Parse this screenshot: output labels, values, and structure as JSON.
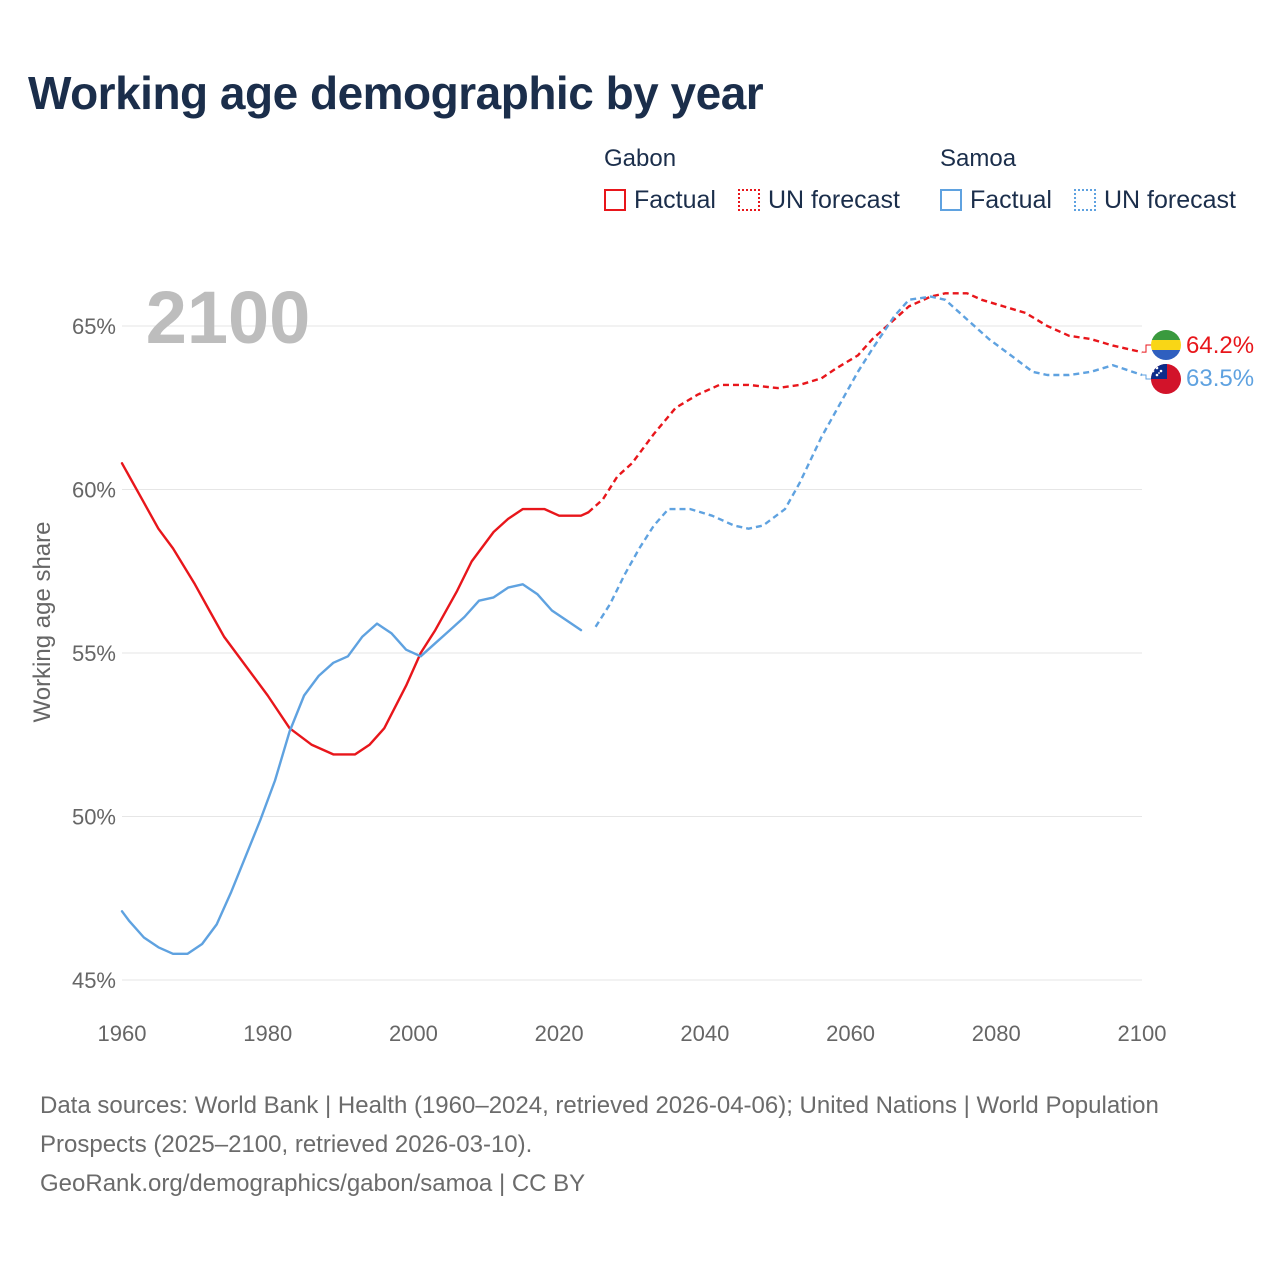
{
  "title": "Working age demographic by year",
  "legend": {
    "groups": [
      {
        "name": "Gabon",
        "color": "#e8161b",
        "factual_label": "Factual",
        "forecast_label": "UN forecast"
      },
      {
        "name": "Samoa",
        "color": "#5fa2e0",
        "factual_label": "Factual",
        "forecast_label": "UN forecast"
      }
    ]
  },
  "chart_data": {
    "type": "line",
    "year_watermark": "2100",
    "ylabel": "Working age share",
    "xlabel": "",
    "xlim": [
      1960,
      2100
    ],
    "ylim": [
      45,
      67
    ],
    "x_ticks": [
      "1960",
      "1980",
      "2000",
      "2020",
      "2040",
      "2060",
      "2080",
      "2100"
    ],
    "y_ticks": [
      {
        "value": 45,
        "label": "45%"
      },
      {
        "value": 50,
        "label": "50%"
      },
      {
        "value": 55,
        "label": "55%"
      },
      {
        "value": 60,
        "label": "60%"
      },
      {
        "value": 65,
        "label": "65%"
      }
    ],
    "factual_until": 2024,
    "series": [
      {
        "name": "Gabon",
        "color": "#e8161b",
        "end_label": "64.2%",
        "points": [
          [
            1960,
            60.8
          ],
          [
            1963,
            59.6
          ],
          [
            1965,
            58.8
          ],
          [
            1967,
            58.2
          ],
          [
            1970,
            57.1
          ],
          [
            1972,
            56.3
          ],
          [
            1974,
            55.5
          ],
          [
            1977,
            54.6
          ],
          [
            1980,
            53.7
          ],
          [
            1983,
            52.7
          ],
          [
            1986,
            52.2
          ],
          [
            1989,
            51.9
          ],
          [
            1992,
            51.9
          ],
          [
            1994,
            52.2
          ],
          [
            1996,
            52.7
          ],
          [
            1999,
            54.0
          ],
          [
            2001,
            55.0
          ],
          [
            2003,
            55.7
          ],
          [
            2006,
            56.9
          ],
          [
            2008,
            57.8
          ],
          [
            2011,
            58.7
          ],
          [
            2013,
            59.1
          ],
          [
            2015,
            59.4
          ],
          [
            2018,
            59.4
          ],
          [
            2020,
            59.2
          ],
          [
            2023,
            59.2
          ],
          [
            2024,
            59.3
          ],
          [
            2026,
            59.7
          ],
          [
            2028,
            60.4
          ],
          [
            2030,
            60.8
          ],
          [
            2033,
            61.7
          ],
          [
            2036,
            62.5
          ],
          [
            2039,
            62.9
          ],
          [
            2042,
            63.2
          ],
          [
            2046,
            63.2
          ],
          [
            2050,
            63.1
          ],
          [
            2053,
            63.2
          ],
          [
            2056,
            63.4
          ],
          [
            2058,
            63.7
          ],
          [
            2061,
            64.1
          ],
          [
            2063,
            64.6
          ],
          [
            2066,
            65.2
          ],
          [
            2068,
            65.6
          ],
          [
            2071,
            65.9
          ],
          [
            2073,
            66.0
          ],
          [
            2076,
            66.0
          ],
          [
            2078,
            65.8
          ],
          [
            2081,
            65.6
          ],
          [
            2084,
            65.4
          ],
          [
            2087,
            65.0
          ],
          [
            2090,
            64.7
          ],
          [
            2093,
            64.6
          ],
          [
            2096,
            64.4
          ],
          [
            2100,
            64.2
          ]
        ]
      },
      {
        "name": "Samoa",
        "color": "#5fa2e0",
        "end_label": "63.5%",
        "points": [
          [
            1960,
            47.1
          ],
          [
            1961,
            46.8
          ],
          [
            1963,
            46.3
          ],
          [
            1965,
            46.0
          ],
          [
            1967,
            45.8
          ],
          [
            1969,
            45.8
          ],
          [
            1971,
            46.1
          ],
          [
            1973,
            46.7
          ],
          [
            1975,
            47.7
          ],
          [
            1977,
            48.8
          ],
          [
            1979,
            49.9
          ],
          [
            1981,
            51.1
          ],
          [
            1983,
            52.6
          ],
          [
            1985,
            53.7
          ],
          [
            1987,
            54.3
          ],
          [
            1989,
            54.7
          ],
          [
            1991,
            54.9
          ],
          [
            1993,
            55.5
          ],
          [
            1995,
            55.9
          ],
          [
            1997,
            55.6
          ],
          [
            1999,
            55.1
          ],
          [
            2001,
            54.9
          ],
          [
            2003,
            55.3
          ],
          [
            2005,
            55.7
          ],
          [
            2007,
            56.1
          ],
          [
            2009,
            56.6
          ],
          [
            2011,
            56.7
          ],
          [
            2013,
            57.0
          ],
          [
            2015,
            57.1
          ],
          [
            2017,
            56.8
          ],
          [
            2019,
            56.3
          ],
          [
            2021,
            56.0
          ],
          [
            2023,
            55.7
          ],
          [
            2025,
            55.8
          ],
          [
            2027,
            56.5
          ],
          [
            2029,
            57.4
          ],
          [
            2031,
            58.2
          ],
          [
            2033,
            58.9
          ],
          [
            2035,
            59.4
          ],
          [
            2038,
            59.4
          ],
          [
            2041,
            59.2
          ],
          [
            2044,
            58.9
          ],
          [
            2046,
            58.8
          ],
          [
            2048,
            58.9
          ],
          [
            2051,
            59.4
          ],
          [
            2053,
            60.2
          ],
          [
            2056,
            61.6
          ],
          [
            2058,
            62.4
          ],
          [
            2061,
            63.6
          ],
          [
            2063,
            64.3
          ],
          [
            2066,
            65.3
          ],
          [
            2068,
            65.8
          ],
          [
            2071,
            65.9
          ],
          [
            2073,
            65.8
          ],
          [
            2076,
            65.2
          ],
          [
            2079,
            64.6
          ],
          [
            2082,
            64.1
          ],
          [
            2085,
            63.6
          ],
          [
            2087,
            63.5
          ],
          [
            2090,
            63.5
          ],
          [
            2093,
            63.6
          ],
          [
            2096,
            63.8
          ],
          [
            2100,
            63.5
          ]
        ]
      }
    ]
  },
  "footer": {
    "line1": "Data sources: World Bank | Health (1960–2024, retrieved 2026-04-06); United Nations | World Population Prospects (2025–2100, retrieved 2026-03-10).",
    "line2": "GeoRank.org/demographics/gabon/samoa | CC BY"
  }
}
